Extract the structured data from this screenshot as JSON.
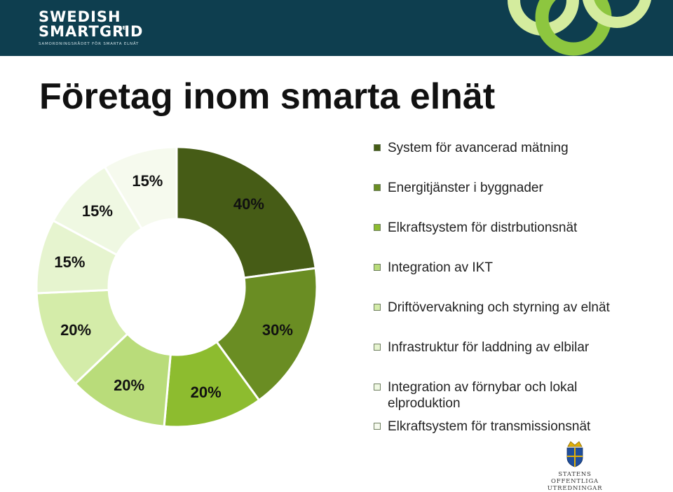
{
  "header": {
    "logo_line1": "SWEDISH",
    "logo_line2": "SMARTGRID",
    "logo_suffix": "SE",
    "logo_tagline": "SAMORDNINGSRÅDET FÖR SMARTA ELNÄT",
    "background_color": "#0e3e4f",
    "accent_colors": [
      "#8dc63f",
      "#d4ec9e"
    ]
  },
  "title": "Företag inom smarta elnät",
  "chart_data": {
    "type": "donut",
    "title": "",
    "labels": [
      "System för avancerad mätning",
      "Energitjänster i byggnader",
      "Elkraftsystem för distrbutionsnät",
      "Integration av IKT",
      "Driftövervakning och styrning av elnät",
      "Infrastruktur för laddning av elbilar",
      "Integration av förnybar och lokal elproduktion",
      "Elkraftsystem för transmissionsnät"
    ],
    "values": [
      40,
      30,
      20,
      20,
      20,
      15,
      15,
      15
    ],
    "value_labels": [
      "40%",
      "30%",
      "20%",
      "20%",
      "20%",
      "15%",
      "15%",
      "15%"
    ],
    "colors": [
      "#465c16",
      "#6a8d23",
      "#8dbc2f",
      "#b9dc7a",
      "#d4eca9",
      "#e6f4cf",
      "#eff8e2",
      "#f6faee"
    ],
    "legend_position": "right"
  },
  "footer": {
    "seal_line1": "STATENS OFFENTLIGA",
    "seal_line2": "UTREDNINGAR"
  }
}
